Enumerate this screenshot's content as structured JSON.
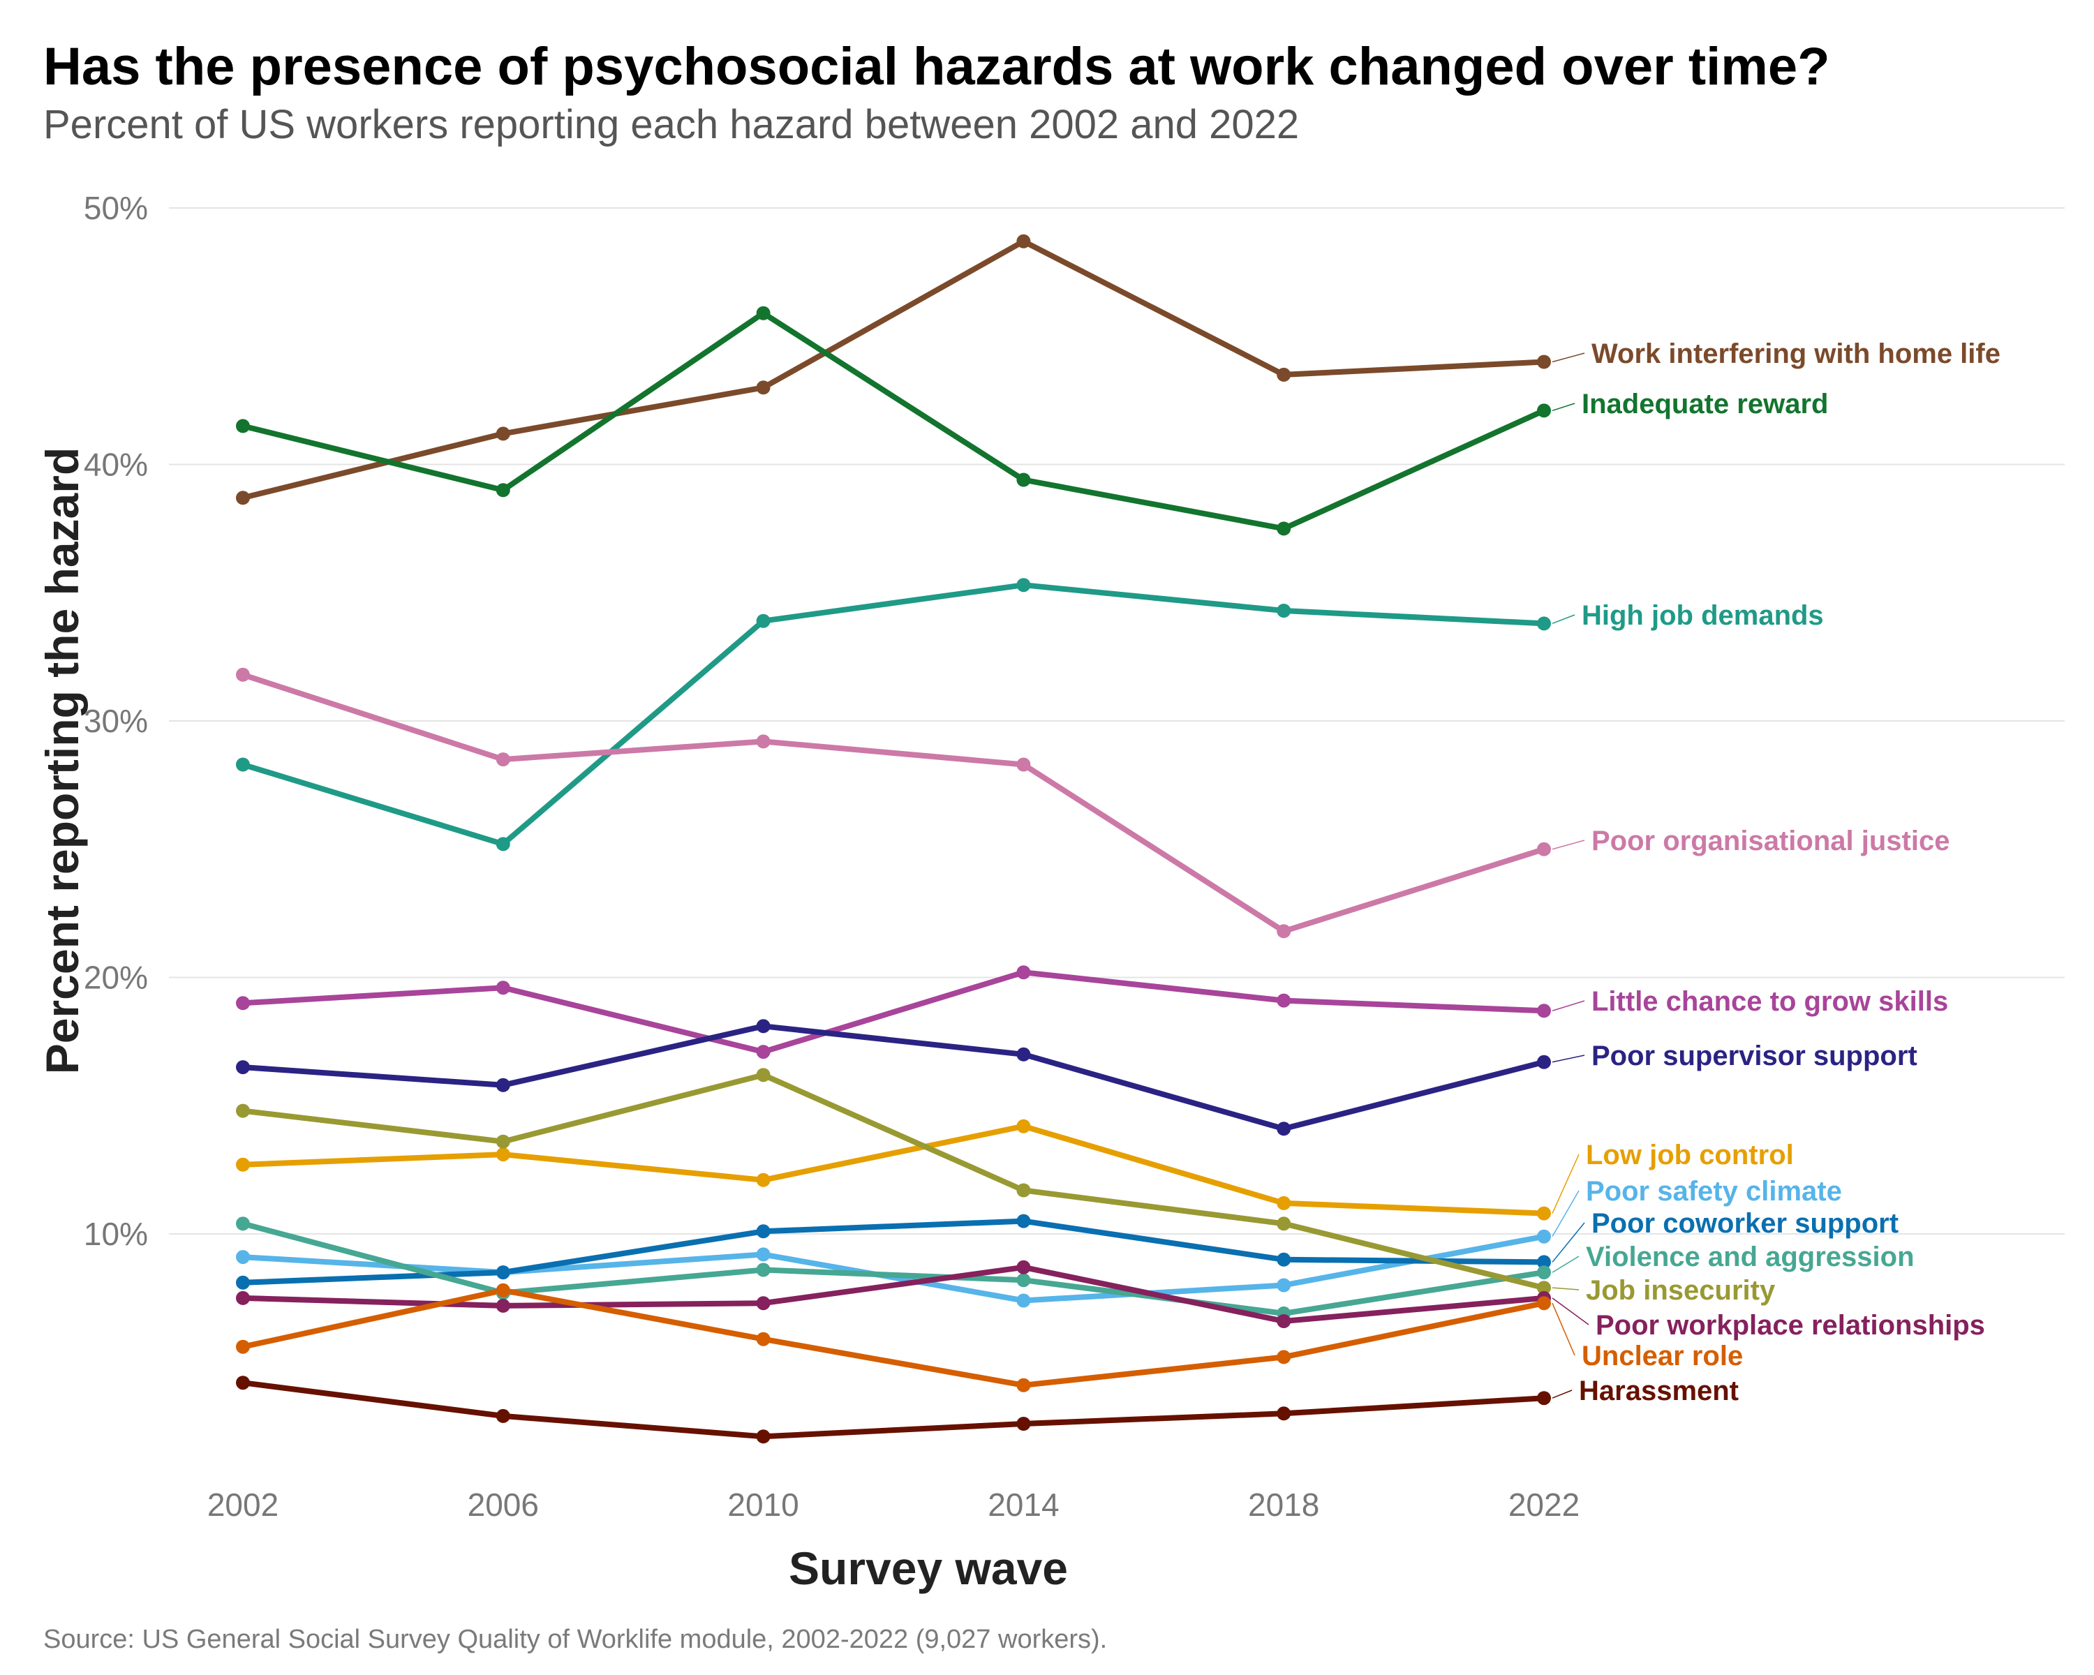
{
  "title": "Has the presence of psychosocial hazards at work changed over time?",
  "subtitle": "Percent of US workers reporting each hazard between 2002 and 2022",
  "source": "Source: US General Social Survey Quality of Worklife module, 2002-2022 (9,027 workers).",
  "chart_data": {
    "type": "line",
    "title": "Has the presence of psychosocial hazards at work changed over time?",
    "subtitle": "Percent of US workers reporting each hazard between 2002 and 2022",
    "xlabel": "Survey wave",
    "ylabel": "Percent reporting the hazard",
    "x": [
      2002,
      2006,
      2010,
      2014,
      2018,
      2022
    ],
    "x_tick_labels": [
      "2002",
      "2006",
      "2010",
      "2014",
      "2018",
      "2022"
    ],
    "y_ticks": [
      10,
      20,
      30,
      40,
      50
    ],
    "y_tick_labels": [
      "10%",
      "20%",
      "30%",
      "40%",
      "50%"
    ],
    "ylim": [
      1,
      50
    ],
    "grid": "horizontal",
    "legend": "direct labels at right end of lines",
    "series": [
      {
        "name": "Work interfering with home life",
        "color": "#7B4A2B",
        "values": [
          38.7,
          41.2,
          43.0,
          48.7,
          43.5,
          44.0
        ]
      },
      {
        "name": "Inadequate reward",
        "color": "#13742E",
        "values": [
          41.5,
          39.0,
          45.9,
          39.4,
          37.5,
          42.1
        ]
      },
      {
        "name": "High job demands",
        "color": "#1F9A87",
        "values": [
          28.3,
          25.2,
          33.9,
          35.3,
          34.3,
          33.8
        ]
      },
      {
        "name": "Poor organisational justice",
        "color": "#CC79A7",
        "values": [
          31.8,
          28.5,
          29.2,
          28.3,
          21.8,
          25.0
        ]
      },
      {
        "name": "Little chance to grow skills",
        "color": "#A8449A",
        "values": [
          19.0,
          19.6,
          17.1,
          20.2,
          19.1,
          18.7
        ]
      },
      {
        "name": "Poor supervisor support",
        "color": "#2B2383",
        "values": [
          16.5,
          15.8,
          18.1,
          17.0,
          14.1,
          16.7
        ]
      },
      {
        "name": "Low job control",
        "color": "#E69F00",
        "values": [
          12.7,
          13.1,
          12.1,
          14.2,
          11.2,
          10.8
        ]
      },
      {
        "name": "Poor safety climate",
        "color": "#56B4E9",
        "values": [
          9.1,
          8.5,
          9.2,
          7.4,
          8.0,
          9.9
        ]
      },
      {
        "name": "Poor coworker support",
        "color": "#0A6FB0",
        "values": [
          8.1,
          8.5,
          10.1,
          10.5,
          9.0,
          8.9
        ]
      },
      {
        "name": "Violence and aggression",
        "color": "#46A793",
        "values": [
          10.4,
          7.7,
          8.6,
          8.2,
          6.9,
          8.5
        ]
      },
      {
        "name": "Job insecurity",
        "color": "#999933",
        "values": [
          14.8,
          13.6,
          16.2,
          11.7,
          10.4,
          7.9
        ]
      },
      {
        "name": "Poor workplace relationships",
        "color": "#85215D",
        "values": [
          7.5,
          7.2,
          7.3,
          8.7,
          6.6,
          7.5
        ]
      },
      {
        "name": "Unclear role",
        "color": "#D55E00",
        "values": [
          5.6,
          7.8,
          5.9,
          4.1,
          5.2,
          7.3
        ]
      },
      {
        "name": "Harassment",
        "color": "#661100",
        "values": [
          4.2,
          2.9,
          2.1,
          2.6,
          3.0,
          3.6
        ]
      }
    ]
  }
}
